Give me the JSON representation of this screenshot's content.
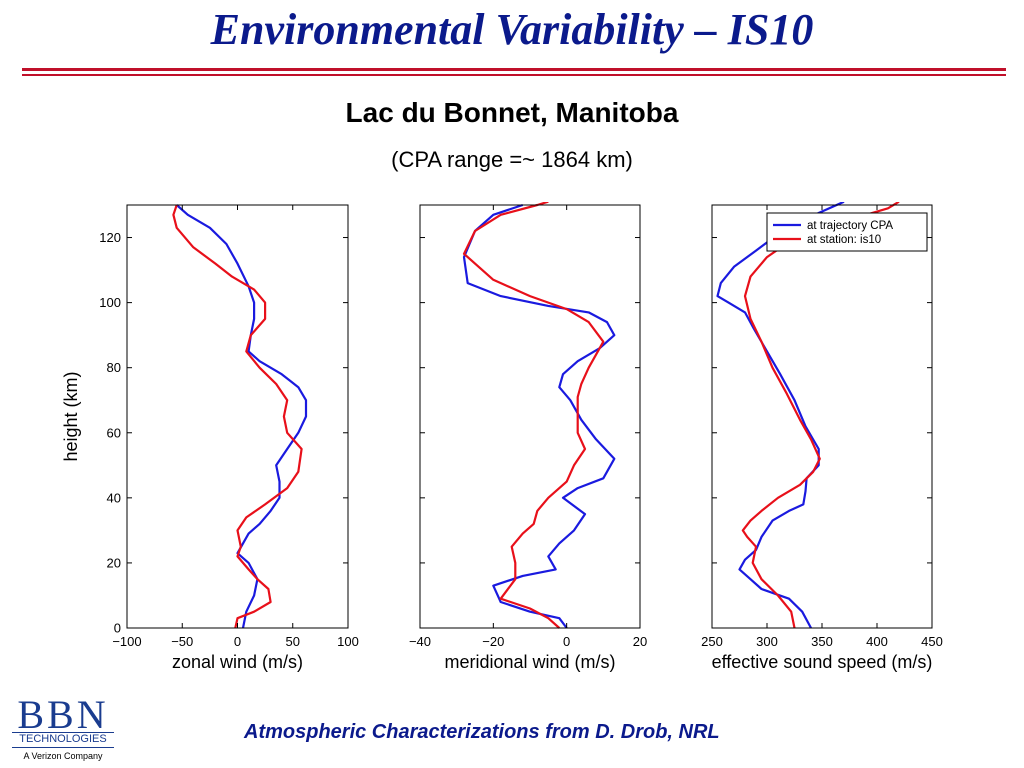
{
  "slide": {
    "title": "Environmental Variability – IS10",
    "subtitle": "Lac du Bonnet, Manitoba",
    "subtitle2": "(CPA range =~ 1864 km)",
    "footer": "Atmospheric Characterizations from D. Drob, NRL"
  },
  "logo": {
    "bbn": "BBN",
    "technologies": "TECHNOLOGIES",
    "tagline": "A Verizon Company"
  },
  "colors": {
    "title": "#0b1a8c",
    "rule": "#c0102a",
    "series_cpa": "#1a1adf",
    "series_station": "#e8101a"
  },
  "chart_data": [
    {
      "type": "line",
      "xlabel": "zonal wind (m/s)",
      "ylabel": "height (km)",
      "xlim": [
        -100,
        100
      ],
      "ylim": [
        0,
        130
      ],
      "xticks": [
        -100,
        -50,
        0,
        50,
        100
      ],
      "xtick_labels": [
        "−100",
        "−50",
        "0",
        "50",
        "100"
      ],
      "yticks": [
        0,
        20,
        40,
        60,
        80,
        100,
        120
      ],
      "ytick_labels": [
        "0",
        "20",
        "40",
        "60",
        "80",
        "100",
        "120"
      ],
      "series": [
        {
          "color": "#1a1adf",
          "points": [
            [
              5,
              0
            ],
            [
              8,
              5
            ],
            [
              15,
              10
            ],
            [
              18,
              15
            ],
            [
              10,
              20
            ],
            [
              0,
              23
            ],
            [
              5,
              26
            ],
            [
              10,
              29
            ],
            [
              20,
              32
            ],
            [
              30,
              36
            ],
            [
              38,
              40
            ],
            [
              38,
              45
            ],
            [
              35,
              50
            ],
            [
              45,
              55
            ],
            [
              55,
              60
            ],
            [
              62,
              65
            ],
            [
              62,
              70
            ],
            [
              55,
              74
            ],
            [
              40,
              78
            ],
            [
              20,
              82
            ],
            [
              10,
              85
            ],
            [
              12,
              90
            ],
            [
              15,
              95
            ],
            [
              15,
              100
            ],
            [
              10,
              105
            ],
            [
              0,
              112
            ],
            [
              -10,
              118
            ],
            [
              -25,
              123
            ],
            [
              -45,
              127
            ],
            [
              -55,
              130
            ]
          ]
        },
        {
          "color": "#e8101a",
          "points": [
            [
              -2,
              0
            ],
            [
              0,
              3
            ],
            [
              15,
              5
            ],
            [
              30,
              8
            ],
            [
              28,
              12
            ],
            [
              18,
              15
            ],
            [
              10,
              18
            ],
            [
              0,
              22
            ],
            [
              3,
              25
            ],
            [
              0,
              30
            ],
            [
              8,
              34
            ],
            [
              25,
              38
            ],
            [
              45,
              43
            ],
            [
              55,
              48
            ],
            [
              58,
              55
            ],
            [
              45,
              60
            ],
            [
              42,
              65
            ],
            [
              45,
              70
            ],
            [
              35,
              75
            ],
            [
              20,
              80
            ],
            [
              8,
              85
            ],
            [
              12,
              90
            ],
            [
              25,
              95
            ],
            [
              25,
              100
            ],
            [
              15,
              104
            ],
            [
              -5,
              108
            ],
            [
              -20,
              112
            ],
            [
              -40,
              117
            ],
            [
              -55,
              123
            ],
            [
              -58,
              127
            ],
            [
              -55,
              130
            ]
          ]
        }
      ]
    },
    {
      "type": "line",
      "xlabel": "meridional wind (m/s)",
      "xlim": [
        -40,
        20
      ],
      "ylim": [
        0,
        130
      ],
      "xticks": [
        -40,
        -20,
        0,
        20
      ],
      "xtick_labels": [
        "−40",
        "−20",
        "0",
        "20"
      ],
      "yticks": [
        0,
        20,
        40,
        60,
        80,
        100,
        120
      ],
      "series": [
        {
          "color": "#1a1adf",
          "points": [
            [
              0,
              0
            ],
            [
              -2,
              3
            ],
            [
              -10,
              5
            ],
            [
              -18,
              8
            ],
            [
              -20,
              13
            ],
            [
              -12,
              16
            ],
            [
              -3,
              18
            ],
            [
              -5,
              22
            ],
            [
              -2,
              26
            ],
            [
              2,
              30
            ],
            [
              5,
              35
            ],
            [
              -1,
              40
            ],
            [
              3,
              43
            ],
            [
              10,
              46
            ],
            [
              13,
              52
            ],
            [
              8,
              58
            ],
            [
              4,
              64
            ],
            [
              1,
              70
            ],
            [
              -2,
              74
            ],
            [
              -1,
              78
            ],
            [
              3,
              82
            ],
            [
              9,
              86
            ],
            [
              13,
              90
            ],
            [
              11,
              94
            ],
            [
              6,
              97
            ],
            [
              -5,
              99
            ],
            [
              -18,
              102
            ],
            [
              -27,
              106
            ],
            [
              -28,
              114
            ],
            [
              -25,
              122
            ],
            [
              -20,
              127
            ],
            [
              -12,
              130
            ]
          ]
        },
        {
          "color": "#e8101a",
          "points": [
            [
              -2,
              0
            ],
            [
              -5,
              3
            ],
            [
              -10,
              6
            ],
            [
              -18,
              9
            ],
            [
              -14,
              15
            ],
            [
              -14,
              20
            ],
            [
              -15,
              25
            ],
            [
              -12,
              29
            ],
            [
              -9,
              32
            ],
            [
              -8,
              36
            ],
            [
              -5,
              40
            ],
            [
              0,
              45
            ],
            [
              2,
              50
            ],
            [
              5,
              55
            ],
            [
              3,
              60
            ],
            [
              3,
              66
            ],
            [
              3,
              71
            ],
            [
              4,
              75
            ],
            [
              6,
              80
            ],
            [
              10,
              88
            ],
            [
              6,
              94
            ],
            [
              0,
              98
            ],
            [
              -10,
              102
            ],
            [
              -20,
              107
            ],
            [
              -28,
              115
            ],
            [
              -25,
              122
            ],
            [
              -18,
              127
            ],
            [
              -8,
              130
            ],
            [
              -5,
              131
            ]
          ]
        }
      ]
    },
    {
      "type": "line",
      "xlabel": "effective sound speed (m/s)",
      "xlim": [
        250,
        450
      ],
      "ylim": [
        0,
        130
      ],
      "xticks": [
        250,
        300,
        350,
        400,
        450
      ],
      "xtick_labels": [
        "250",
        "300",
        "350",
        "400",
        "450"
      ],
      "yticks": [
        0,
        20,
        40,
        60,
        80,
        100,
        120
      ],
      "legend": {
        "position": "top-right",
        "entries": [
          "at trajectory CPA",
          "at station: is10"
        ]
      },
      "series": [
        {
          "color": "#1a1adf",
          "points": [
            [
              340,
              0
            ],
            [
              332,
              5
            ],
            [
              320,
              9
            ],
            [
              295,
              12
            ],
            [
              285,
              15
            ],
            [
              275,
              18
            ],
            [
              280,
              21
            ],
            [
              290,
              24
            ],
            [
              295,
              28
            ],
            [
              305,
              33
            ],
            [
              320,
              36
            ],
            [
              333,
              38
            ],
            [
              335,
              42
            ],
            [
              336,
              46
            ],
            [
              347,
              50
            ],
            [
              347,
              55
            ],
            [
              335,
              62
            ],
            [
              325,
              70
            ],
            [
              312,
              78
            ],
            [
              300,
              85
            ],
            [
              288,
              92
            ],
            [
              280,
              97
            ],
            [
              265,
              100
            ],
            [
              255,
              102
            ],
            [
              258,
              106
            ],
            [
              270,
              111
            ],
            [
              290,
              116
            ],
            [
              310,
              121
            ],
            [
              330,
              125
            ],
            [
              350,
              128
            ],
            [
              370,
              131
            ]
          ]
        },
        {
          "color": "#e8101a",
          "points": [
            [
              325,
              0
            ],
            [
              322,
              5
            ],
            [
              310,
              10
            ],
            [
              295,
              15
            ],
            [
              287,
              20
            ],
            [
              290,
              25
            ],
            [
              282,
              28
            ],
            [
              278,
              30
            ],
            [
              285,
              33
            ],
            [
              295,
              36
            ],
            [
              310,
              40
            ],
            [
              330,
              44
            ],
            [
              342,
              48
            ],
            [
              348,
              52
            ],
            [
              340,
              58
            ],
            [
              330,
              64
            ],
            [
              318,
              72
            ],
            [
              305,
              80
            ],
            [
              295,
              88
            ],
            [
              285,
              95
            ],
            [
              280,
              102
            ],
            [
              285,
              108
            ],
            [
              300,
              114
            ],
            [
              330,
              121
            ],
            [
              360,
              125
            ],
            [
              390,
              127
            ],
            [
              410,
              129
            ],
            [
              420,
              131
            ]
          ]
        }
      ]
    }
  ]
}
